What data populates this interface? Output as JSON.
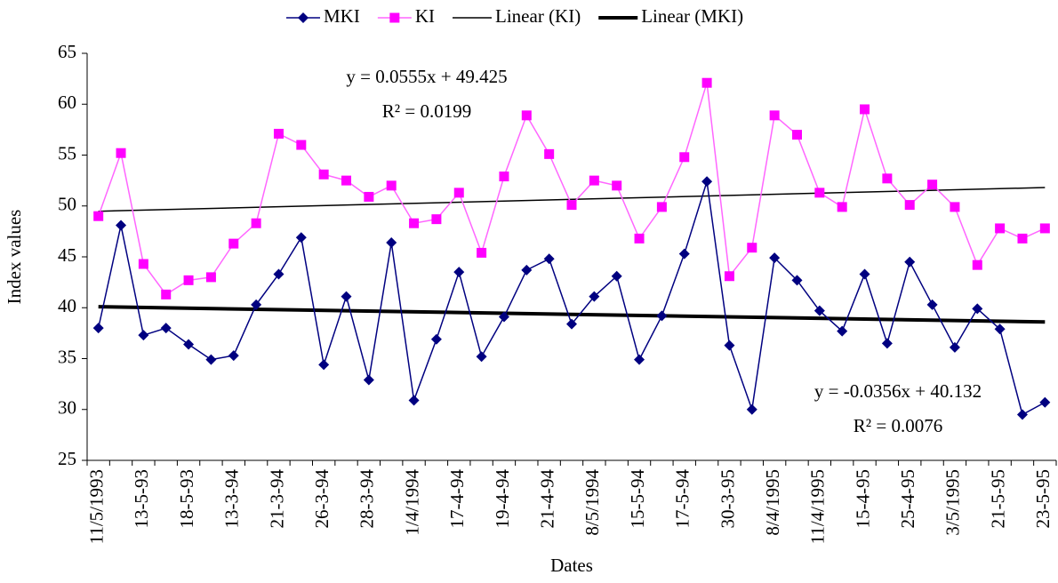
{
  "chart_data": {
    "type": "line",
    "x_label": "Dates",
    "y_label": "Index values",
    "categories": [
      "11/5/1993",
      null,
      "13-5-93",
      null,
      "18-5-93",
      null,
      "13-3-94",
      null,
      "21-3-94",
      null,
      "26-3-94",
      null,
      "28-3-94",
      null,
      "1/4/1994",
      null,
      "17-4-94",
      null,
      "19-4-94",
      null,
      "21-4-94",
      null,
      "8/5/1994",
      null,
      "15-5-94",
      null,
      "17-5-94",
      null,
      "30-3-95",
      null,
      "8/4/1995",
      null,
      "11/4/1995",
      null,
      "15-4-95",
      null,
      "25-4-95",
      null,
      "3/5/1995",
      null,
      "21-5-95",
      null,
      "23-5-95"
    ],
    "series": [
      {
        "name": "MKI",
        "color": "#000080",
        "marker": "diamond",
        "values": [
          38,
          48.1,
          37.3,
          38,
          36.4,
          34.9,
          35.3,
          40.3,
          43.3,
          46.9,
          34.4,
          41.1,
          32.9,
          46.4,
          30.9,
          36.9,
          43.5,
          35.2,
          39.1,
          43.7,
          44.8,
          38.4,
          41.1,
          43.1,
          34.9,
          39.2,
          45.3,
          52.4,
          36.3,
          30,
          44.9,
          42.7,
          39.7,
          37.7,
          43.3,
          36.5,
          44.5,
          40.3,
          36.1,
          39.9,
          37.9,
          29.5,
          30.7
        ]
      },
      {
        "name": "KI",
        "color": "#ff00ff",
        "line_color": "#ff66ff",
        "marker": "square",
        "values": [
          49,
          55.2,
          44.3,
          41.3,
          42.7,
          43,
          46.3,
          48.3,
          57.1,
          56,
          53.1,
          52.5,
          50.9,
          52,
          48.3,
          48.7,
          51.3,
          45.4,
          52.9,
          58.9,
          55.1,
          50.1,
          52.5,
          52,
          46.8,
          49.9,
          54.8,
          62.1,
          43.1,
          45.9,
          58.9,
          57,
          51.3,
          49.9,
          59.5,
          52.7,
          50.1,
          52.1,
          49.9,
          44.2,
          47.8,
          46.8,
          47.8
        ]
      }
    ],
    "trendlines": [
      {
        "name": "Linear (KI)",
        "color": "#000000",
        "width": 1.5,
        "slope": 0.0555,
        "intercept": 49.425,
        "equation": "y = 0.0555x + 49.425",
        "r_squared": "R² = 0.0199"
      },
      {
        "name": "Linear (MKI)",
        "color": "#000000",
        "width": 4,
        "slope": -0.0356,
        "intercept": 40.132,
        "equation": "y = -0.0356x + 40.132",
        "r_squared": "R² = 0.0076"
      }
    ],
    "ylim": [
      25,
      65
    ],
    "yticks": [
      25,
      30,
      35,
      40,
      45,
      50,
      55,
      60,
      65
    ],
    "grid": false,
    "legend": "top"
  }
}
